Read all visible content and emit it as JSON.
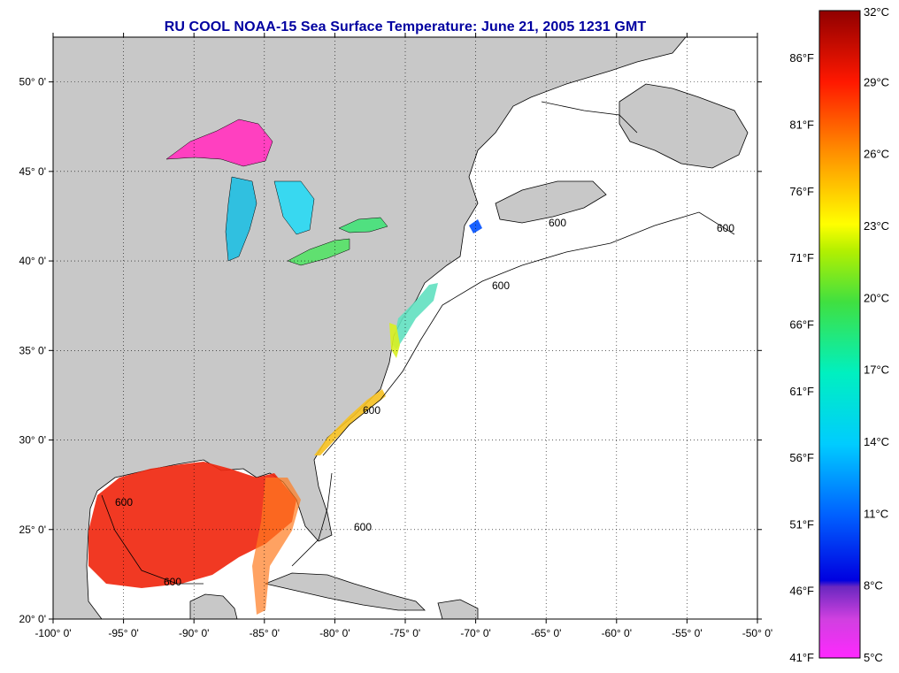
{
  "title": "RU COOL  NOAA-15  Sea Surface Temperature:  June 21, 2005 1231 GMT",
  "map": {
    "lon_range": [
      -100,
      -50
    ],
    "lat_range": [
      20,
      52.5
    ],
    "lon_ticks": [
      "-100° 0'",
      "-95° 0'",
      "-90° 0'",
      "-85° 0'",
      "-80° 0'",
      "-75° 0'",
      "-70° 0'",
      "-65° 0'",
      "-60° 0'",
      "-55° 0'",
      "-50° 0'"
    ],
    "lat_ticks": [
      "20° 0'",
      "25° 0'",
      "30° 0'",
      "35° 0'",
      "40° 0'",
      "45° 0'",
      "50° 0'"
    ],
    "grid": true,
    "contour_label": "600"
  },
  "colorbar": {
    "celsius_range": [
      5,
      32
    ],
    "fahrenheit_range": [
      41,
      89.6
    ],
    "celsius_labels": [
      "32°C",
      "29°C",
      "26°C",
      "23°C",
      "20°C",
      "17°C",
      "14°C",
      "11°C",
      "8°C",
      "5°C"
    ],
    "fahrenheit_labels": [
      "86°F",
      "81°F",
      "76°F",
      "71°F",
      "66°F",
      "61°F",
      "56°F",
      "51°F",
      "46°F",
      "41°F"
    ],
    "celsius_values": [
      32,
      29,
      26,
      23,
      20,
      17,
      14,
      11,
      8,
      5
    ],
    "fahrenheit_values": [
      86,
      81,
      76,
      71,
      66,
      61,
      56,
      51,
      46,
      41
    ]
  },
  "colors": {
    "land": "#c8c8c8",
    "ocean": "#ffffff",
    "title": "#0000a0"
  }
}
